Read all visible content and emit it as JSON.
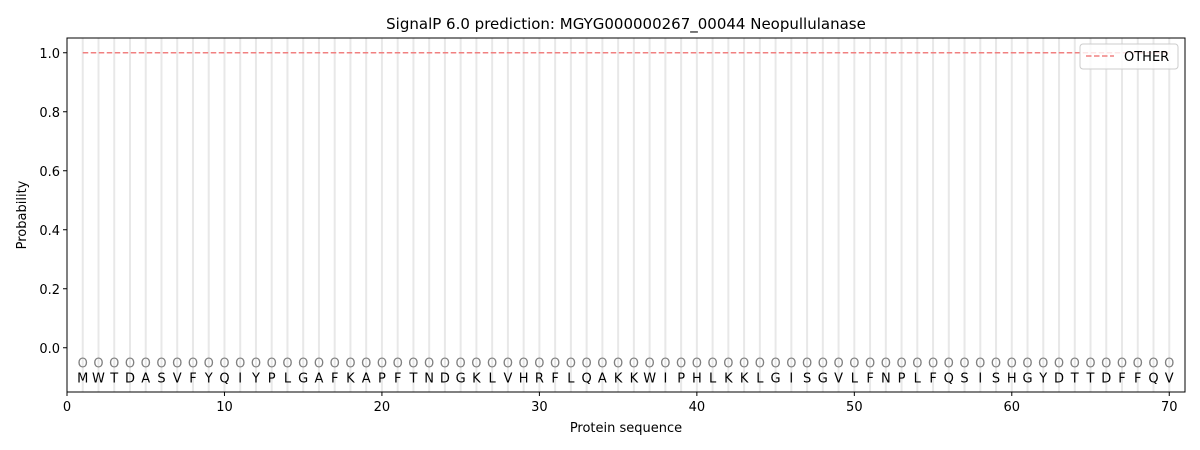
{
  "chart_data": {
    "type": "line",
    "title": "SignalP 6.0 prediction: MGYG000000267_00044 Neopullulanase",
    "xlabel": "Protein sequence",
    "ylabel": "Probability",
    "xlim": [
      0,
      71
    ],
    "ylim": [
      -0.15,
      1.05
    ],
    "xticks": [
      0,
      10,
      20,
      30,
      40,
      50,
      60,
      70
    ],
    "yticks": [
      0.0,
      0.2,
      0.4,
      0.6,
      0.8,
      1.0
    ],
    "ytick_labels": [
      "0.0",
      "0.2",
      "0.4",
      "0.6",
      "0.8",
      "1.0"
    ],
    "sequence": "MWTDASVFYQIYPLGAFKAPFTNDGKLVHRFLQAKKWIPHLKKLGISGVLFNPLFQSISHGYDTTDFFQV",
    "region_labels": "OOOOOOOOOOOOOOOOOOOOOOOOOOOOOOOOOOOOOOOOOOOOOOOOOOOOOOOOOOOOOOOOOOOOOO",
    "series": [
      {
        "name": "OTHER",
        "color": "#f08080",
        "style": "dashed",
        "x_start": 1,
        "x_end": 70,
        "value": 1.0
      }
    ],
    "legend_position": "top-right",
    "grid": "vertical lines at each residue"
  }
}
